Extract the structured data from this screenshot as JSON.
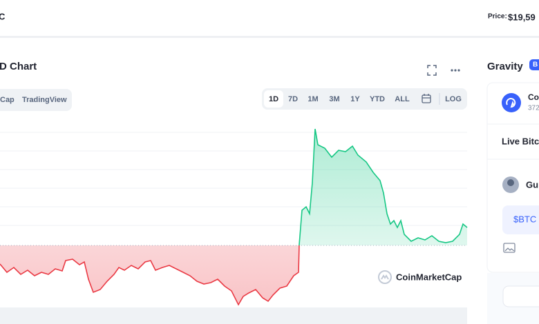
{
  "header": {
    "logo_fragment": "C",
    "price_label": "Price:",
    "price": "$19,59"
  },
  "chart_panel": {
    "title": "D Chart",
    "source_tabs": [
      "Cap",
      "TradingView"
    ],
    "range_tabs": [
      "1D",
      "7D",
      "1M",
      "3M",
      "1Y",
      "YTD",
      "ALL"
    ],
    "log_toggle": "LOG",
    "watermark": "CoinMarketCap"
  },
  "side_panel": {
    "title": "Gravity",
    "badge": "B",
    "account_name": "Co",
    "account_count": "372",
    "section_title": "Live Bitc",
    "user_name": "Gu",
    "post_text": "$BTC"
  }
}
